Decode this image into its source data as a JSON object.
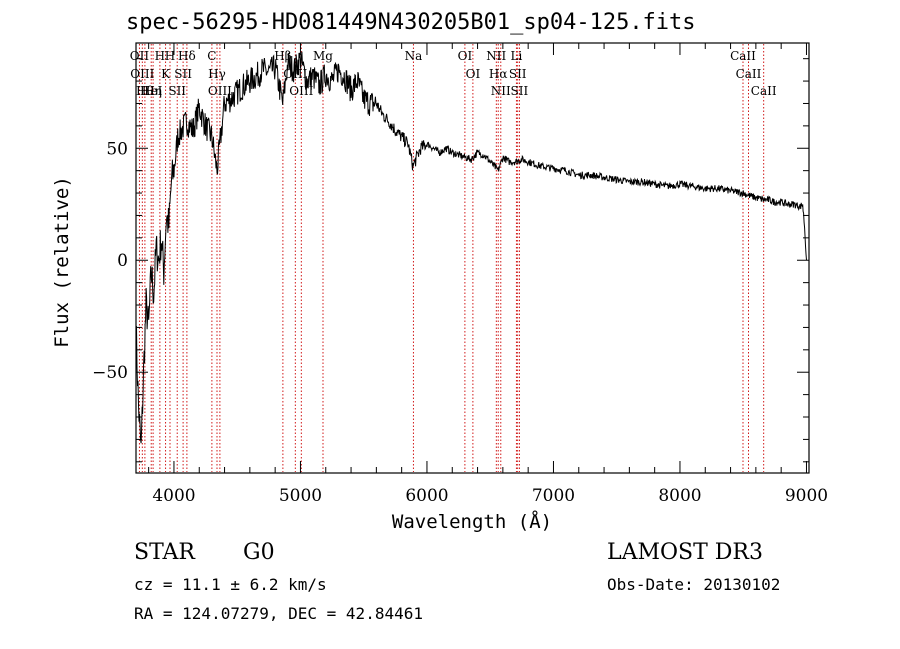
{
  "title": "spec-56295-HD081449N430205B01_sp04-125.fits",
  "info": {
    "object_class": "STAR",
    "subclass": "G0",
    "survey": "LAMOST DR3",
    "redshift": "cz = 11.1 ± 6.2 km/s",
    "obs_date": "Obs-Date: 20130102",
    "coords": "RA = 124.07279, DEC =  42.84461"
  },
  "chart_data": {
    "type": "line",
    "title": "spec-56295-HD081449N430205B01_sp04-125.fits",
    "xlabel": "Wavelength (Å)",
    "ylabel": "Flux (relative)",
    "xlim": [
      3700,
      9020
    ],
    "ylim": [
      -95,
      97
    ],
    "x_ticks": [
      4000,
      5000,
      6000,
      7000,
      8000,
      9000
    ],
    "y_ticks": [
      -50,
      0,
      50
    ],
    "x_minor_step": 200,
    "y_minor_step": 10,
    "grid": false,
    "line_color": "#000000",
    "marker_color": "#cc0000",
    "series": [
      {
        "name": "flux",
        "x": [
          3700,
          3720,
          3740,
          3760,
          3780,
          3800,
          3820,
          3840,
          3860,
          3880,
          3900,
          3920,
          3940,
          3960,
          3980,
          4000,
          4030,
          4060,
          4100,
          4150,
          4200,
          4250,
          4300,
          4340,
          4400,
          4450,
          4500,
          4550,
          4600,
          4650,
          4700,
          4750,
          4800,
          4860,
          4900,
          4950,
          5000,
          5050,
          5100,
          5150,
          5200,
          5250,
          5300,
          5350,
          5400,
          5450,
          5500,
          5550,
          5600,
          5650,
          5700,
          5750,
          5800,
          5850,
          5890,
          5950,
          6000,
          6050,
          6100,
          6150,
          6200,
          6250,
          6300,
          6350,
          6400,
          6450,
          6500,
          6563,
          6600,
          6650,
          6700,
          6750,
          6800,
          6900,
          7000,
          7100,
          7200,
          7300,
          7400,
          7500,
          7600,
          7700,
          7800,
          7900,
          8000,
          8100,
          8200,
          8300,
          8400,
          8500,
          8542,
          8600,
          8662,
          8700,
          8750,
          8800,
          8850,
          8900,
          8950,
          8970,
          8985,
          9000
        ],
        "y": [
          -30,
          -65,
          -85,
          -50,
          -20,
          -30,
          -5,
          -15,
          5,
          0,
          10,
          -5,
          20,
          15,
          35,
          40,
          55,
          58,
          62,
          58,
          68,
          60,
          55,
          40,
          70,
          72,
          75,
          78,
          80,
          82,
          85,
          84,
          86,
          70,
          88,
          85,
          90,
          80,
          82,
          78,
          83,
          80,
          85,
          82,
          76,
          80,
          72,
          70,
          70,
          65,
          62,
          58,
          55,
          52,
          42,
          50,
          52,
          50,
          48,
          50,
          48,
          47,
          46,
          45,
          48,
          47,
          44,
          40,
          46,
          44,
          44,
          45,
          44,
          42,
          41,
          40,
          38,
          38,
          37,
          36,
          35,
          35,
          34,
          33,
          34,
          33,
          32,
          32,
          31,
          30,
          29,
          28,
          27,
          27,
          26,
          26,
          25,
          25,
          24,
          25,
          15,
          0
        ]
      }
    ],
    "markers": [
      {
        "wavelength": 3727,
        "label": "OII"
      },
      {
        "wavelength": 3750,
        "label": "OIII"
      },
      {
        "wavelength": 3770,
        "label": "Hθ"
      },
      {
        "wavelength": 3820,
        "label": "HeI"
      },
      {
        "wavelength": 3835,
        "label": "Hη"
      },
      {
        "wavelength": 3889,
        "label": "H"
      },
      {
        "wavelength": 3934,
        "label": "K"
      },
      {
        "wavelength": 3969,
        "label": "H"
      },
      {
        "wavelength": 4026,
        "label": "SII"
      },
      {
        "wavelength": 4072,
        "label": "SII"
      },
      {
        "wavelength": 4102,
        "label": "Hδ"
      },
      {
        "wavelength": 4300,
        "label": "C"
      },
      {
        "wavelength": 4340,
        "label": "Hγ"
      },
      {
        "wavelength": 4363,
        "label": "OIII"
      },
      {
        "wavelength": 4861,
        "label": "Hβ"
      },
      {
        "wavelength": 4959,
        "label": "OIII"
      },
      {
        "wavelength": 5007,
        "label": "OIII"
      },
      {
        "wavelength": 5178,
        "label": "Mg"
      },
      {
        "wavelength": 5893,
        "label": "Na"
      },
      {
        "wavelength": 6300,
        "label": "OI"
      },
      {
        "wavelength": 6363,
        "label": "OI"
      },
      {
        "wavelength": 6548,
        "label": "NII"
      },
      {
        "wavelength": 6563,
        "label": "Hα"
      },
      {
        "wavelength": 6584,
        "label": "NII"
      },
      {
        "wavelength": 6707,
        "label": "Li"
      },
      {
        "wavelength": 6717,
        "label": "SII"
      },
      {
        "wavelength": 6731,
        "label": "SII"
      },
      {
        "wavelength": 8498,
        "label": "CaII"
      },
      {
        "wavelength": 8542,
        "label": "CaII"
      },
      {
        "wavelength": 8662,
        "label": "CaII"
      }
    ]
  }
}
